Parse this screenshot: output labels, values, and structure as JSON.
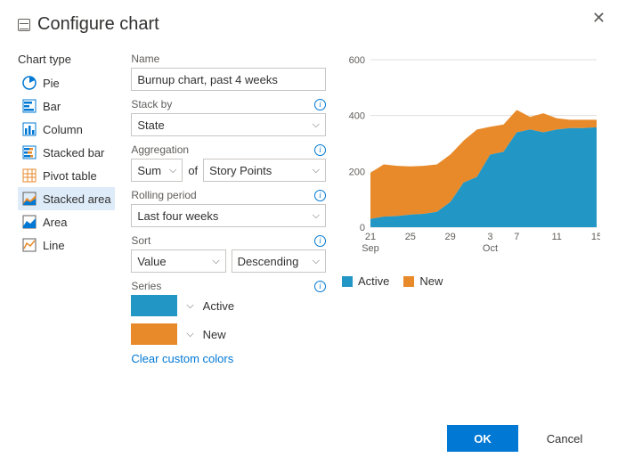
{
  "dialog": {
    "title": "Configure chart",
    "ok_label": "OK",
    "cancel_label": "Cancel"
  },
  "sidebar": {
    "title": "Chart type",
    "items": [
      {
        "label": "Pie",
        "icon": "pie"
      },
      {
        "label": "Bar",
        "icon": "bar"
      },
      {
        "label": "Column",
        "icon": "column"
      },
      {
        "label": "Stacked bar",
        "icon": "stacked-bar"
      },
      {
        "label": "Pivot table",
        "icon": "pivot"
      },
      {
        "label": "Stacked area",
        "icon": "stacked-area",
        "selected": true
      },
      {
        "label": "Area",
        "icon": "area"
      },
      {
        "label": "Line",
        "icon": "line"
      }
    ]
  },
  "form": {
    "name_label": "Name",
    "name_value": "Burnup chart, past 4 weeks",
    "stackby_label": "Stack by",
    "stackby_value": "State",
    "agg_label": "Aggregation",
    "agg_value": "Sum",
    "agg_of": "of",
    "agg_field_value": "Story Points",
    "rolling_label": "Rolling period",
    "rolling_value": "Last four weeks",
    "sort_label": "Sort",
    "sort_field": "Value",
    "sort_dir": "Descending",
    "series_label": "Series",
    "series": [
      {
        "color": "#2296c4",
        "label": "Active"
      },
      {
        "color": "#e88a2a",
        "label": "New"
      }
    ],
    "clear_colors": "Clear custom colors"
  },
  "chart": {
    "type": "stacked-area",
    "ylim": [
      0,
      600
    ],
    "yticks": [
      0,
      200,
      400,
      600
    ],
    "x_categories": [
      "21",
      "25",
      "29",
      "3",
      "7",
      "11",
      "15"
    ],
    "x_secondary": {
      "0": "Sep",
      "3": "Oct"
    },
    "series": [
      {
        "name": "Active",
        "color": "#2296c4",
        "values": [
          30,
          38,
          40,
          45,
          48,
          55,
          90,
          160,
          180,
          260,
          270,
          340,
          350,
          340,
          350,
          355,
          355,
          358
        ]
      },
      {
        "name": "New",
        "color": "#e88a2a",
        "values": [
          195,
          225,
          220,
          218,
          220,
          225,
          260,
          310,
          350,
          360,
          368,
          420,
          395,
          408,
          390,
          385,
          385,
          385
        ]
      }
    ],
    "gridline_color": "#e1dfdd",
    "axis_color": "#c8c6c4",
    "text_color": "#605e5c",
    "background": "#ffffff",
    "legend": [
      {
        "label": "Active",
        "color": "#2296c4"
      },
      {
        "label": "New",
        "color": "#e88a2a"
      }
    ]
  }
}
